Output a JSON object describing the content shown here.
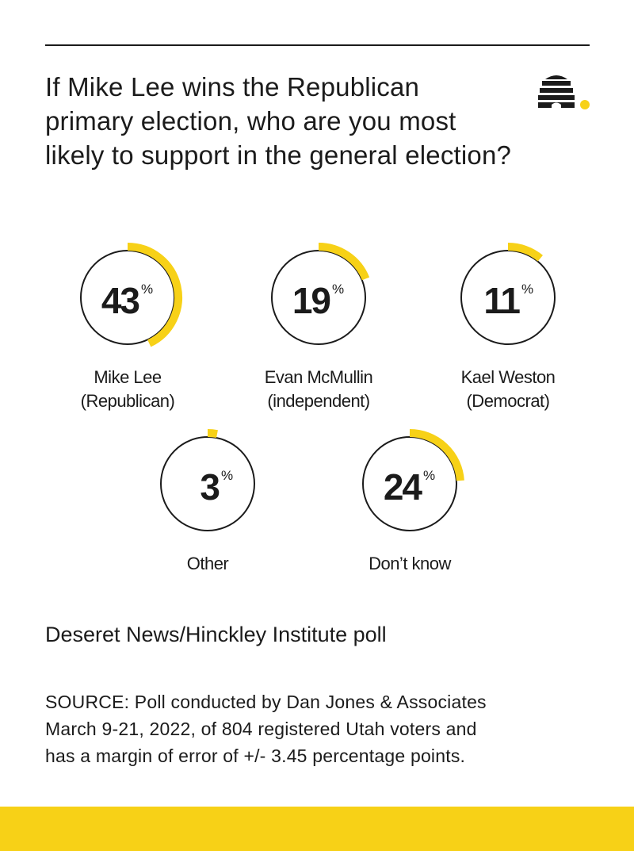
{
  "header": {
    "title": "If Mike Lee wins the Republican primary election, who are you most likely to support in the general election?"
  },
  "chart_data": {
    "type": "pie",
    "unit": "%",
    "accent_color": "#f7d117",
    "ring_color": "#1b1b1b",
    "items": [
      {
        "value": 43,
        "label_line1": "Mike Lee",
        "label_line2": "(Republican)"
      },
      {
        "value": 19,
        "label_line1": "Evan McMullin",
        "label_line2": "(independent)"
      },
      {
        "value": 11,
        "label_line1": "Kael Weston",
        "label_line2": "(Democrat)"
      },
      {
        "value": 3,
        "label_line1": "Other",
        "label_line2": ""
      },
      {
        "value": 24,
        "label_line1": "Don’t know",
        "label_line2": ""
      }
    ]
  },
  "subtitle": "Deseret News/Hinckley Institute poll",
  "source": {
    "line1": "SOURCE: Poll conducted by Dan Jones & Associates",
    "line2": "March 9-21, 2022, of 804 registered Utah voters and",
    "line3": "has a margin of error of +/- 3.45 percentage points."
  },
  "colors": {
    "accent": "#f7d117",
    "text": "#1b1b1b",
    "background": "#ffffff"
  },
  "logo": {
    "icon": "beehive-logo-icon"
  }
}
